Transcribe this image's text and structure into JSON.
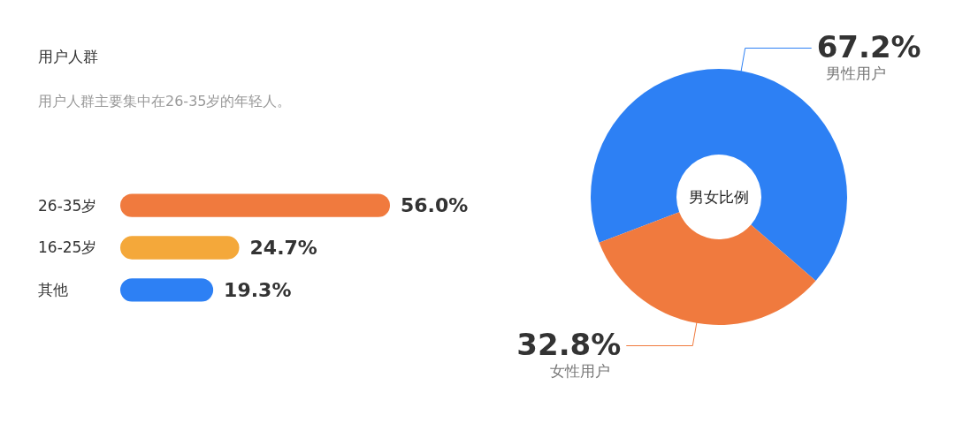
{
  "chart_data": [
    {
      "type": "bar",
      "orientation": "horizontal",
      "title": "用户人群",
      "subtitle": "用户人群主要集中在26-35岁的年轻人。",
      "categories": [
        "26-35岁",
        "16-25岁",
        "其他"
      ],
      "values": [
        56.0,
        24.7,
        19.3
      ],
      "colors": [
        "#f07a3e",
        "#f4a83a",
        "#2d80f4"
      ],
      "value_labels": [
        "56.0%",
        "24.7%",
        "19.3%"
      ]
    },
    {
      "type": "donut",
      "categories": [
        "男性用户",
        "女性用户"
      ],
      "values": [
        67.2,
        32.8
      ],
      "colors": [
        "#2d80f4",
        "#f07a3e"
      ],
      "value_labels": [
        "67.2%",
        "32.8%"
      ],
      "annotations": [
        "男女比例"
      ]
    }
  ]
}
